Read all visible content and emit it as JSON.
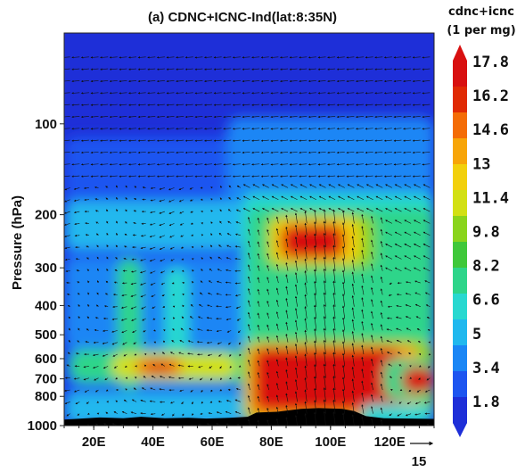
{
  "chart_data": {
    "type": "heatmap",
    "title": "(a) CDNC+ICNC-Ind(lat:8:35N)",
    "ylabel": "Pressure (hPa)",
    "xlabel": "",
    "x_ticks": [
      "20E",
      "40E",
      "60E",
      "80E",
      "100E",
      "120E"
    ],
    "x_tick_values": [
      20,
      40,
      60,
      80,
      100,
      120
    ],
    "xlim": [
      10,
      135
    ],
    "y_ticks": [
      "100",
      "200",
      "300",
      "400",
      "500",
      "600",
      "700",
      "800",
      "1000"
    ],
    "y_tick_values": [
      100,
      200,
      300,
      400,
      500,
      600,
      700,
      800,
      1000
    ],
    "ylim": [
      1000,
      50
    ],
    "y_scale": "log",
    "y_inverted": true,
    "colorbar": {
      "title_line1": "cdnc+icnc",
      "title_line2": "(1 per mg)",
      "labels": [
        "17.8",
        "16.2",
        "14.6",
        "13",
        "11.4",
        "9.8",
        "8.2",
        "6.6",
        "5",
        "3.4",
        "1.8"
      ],
      "levels": [
        17.8,
        16.2,
        14.6,
        13,
        11.4,
        9.8,
        8.2,
        6.6,
        5,
        3.4,
        1.8
      ],
      "colors": [
        "#1e2fd8",
        "#1d55f0",
        "#1a86f5",
        "#20b8ee",
        "#28d8d0",
        "#2ed58a",
        "#3fc83a",
        "#8ad41c",
        "#d2e014",
        "#f2d00c",
        "#f7a509",
        "#f46c06",
        "#e02a04",
        "#d81010"
      ],
      "extend": "both"
    },
    "wind_reference": {
      "label": "15"
    },
    "description_regions": [
      {
        "name": "upper-troposphere-max",
        "lon": [
          80,
          105
        ],
        "p": [
          180,
          280
        ],
        "value": 17.8
      },
      {
        "name": "lower-troposphere-max",
        "lon": [
          72,
          122
        ],
        "p": [
          540,
          950
        ],
        "value": 17.8
      },
      {
        "name": "secondary-max-east",
        "lon": [
          122,
          135
        ],
        "p": [
          600,
          800
        ],
        "value": 16.2
      },
      {
        "name": "background-stratosphere",
        "lon": [
          10,
          135
        ],
        "p": [
          50,
          130
        ],
        "value": 1.8
      }
    ],
    "topography": "Tibetan Plateau masked (black) near 80E-110E at lowest levels"
  }
}
